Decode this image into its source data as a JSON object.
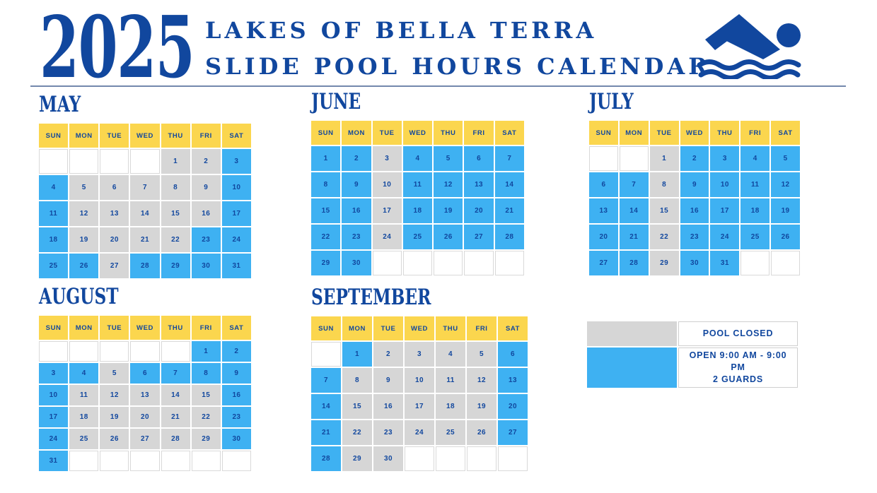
{
  "header": {
    "year": "2025",
    "title_line1": "LAKES OF BELLA TERRA",
    "title_line2": "SLIDE POOL HOURS CALENDAR",
    "icon": "swimmer-icon"
  },
  "colors": {
    "navy_text": "#11479E",
    "open_blue": "#3EB1F2",
    "closed_gray": "#D6D6D6",
    "header_yellow": "#FBD64E"
  },
  "weekdays": [
    "SUN",
    "MON",
    "TUE",
    "WED",
    "THU",
    "FRI",
    "SAT"
  ],
  "legend": {
    "closed_label": "POOL CLOSED",
    "open_label_line1": "OPEN 9:00 AM - 9:00 PM",
    "open_label_line2": "2 GUARDS"
  },
  "months": [
    {
      "name": "MAY",
      "rows": [
        [
          {
            "day": "",
            "status": "empty"
          },
          {
            "day": "",
            "status": "empty"
          },
          {
            "day": "",
            "status": "empty"
          },
          {
            "day": "",
            "status": "empty"
          },
          {
            "day": "1",
            "status": "closed"
          },
          {
            "day": "2",
            "status": "closed"
          },
          {
            "day": "3",
            "status": "open"
          }
        ],
        [
          {
            "day": "4",
            "status": "open"
          },
          {
            "day": "5",
            "status": "closed"
          },
          {
            "day": "6",
            "status": "closed"
          },
          {
            "day": "7",
            "status": "closed"
          },
          {
            "day": "8",
            "status": "closed"
          },
          {
            "day": "9",
            "status": "closed"
          },
          {
            "day": "10",
            "status": "open"
          }
        ],
        [
          {
            "day": "11",
            "status": "open"
          },
          {
            "day": "12",
            "status": "closed"
          },
          {
            "day": "13",
            "status": "closed"
          },
          {
            "day": "14",
            "status": "closed"
          },
          {
            "day": "15",
            "status": "closed"
          },
          {
            "day": "16",
            "status": "closed"
          },
          {
            "day": "17",
            "status": "open"
          }
        ],
        [
          {
            "day": "18",
            "status": "open"
          },
          {
            "day": "19",
            "status": "closed"
          },
          {
            "day": "20",
            "status": "closed"
          },
          {
            "day": "21",
            "status": "closed"
          },
          {
            "day": "22",
            "status": "closed"
          },
          {
            "day": "23",
            "status": "open"
          },
          {
            "day": "24",
            "status": "open"
          }
        ],
        [
          {
            "day": "25",
            "status": "open"
          },
          {
            "day": "26",
            "status": "open"
          },
          {
            "day": "27",
            "status": "closed"
          },
          {
            "day": "28",
            "status": "open"
          },
          {
            "day": "29",
            "status": "open"
          },
          {
            "day": "30",
            "status": "open"
          },
          {
            "day": "31",
            "status": "open"
          }
        ]
      ]
    },
    {
      "name": "JUNE",
      "rows": [
        [
          {
            "day": "1",
            "status": "open"
          },
          {
            "day": "2",
            "status": "open"
          },
          {
            "day": "3",
            "status": "closed"
          },
          {
            "day": "4",
            "status": "open"
          },
          {
            "day": "5",
            "status": "open"
          },
          {
            "day": "6",
            "status": "open"
          },
          {
            "day": "7",
            "status": "open"
          }
        ],
        [
          {
            "day": "8",
            "status": "open"
          },
          {
            "day": "9",
            "status": "open"
          },
          {
            "day": "10",
            "status": "closed"
          },
          {
            "day": "11",
            "status": "open"
          },
          {
            "day": "12",
            "status": "open"
          },
          {
            "day": "13",
            "status": "open"
          },
          {
            "day": "14",
            "status": "open"
          }
        ],
        [
          {
            "day": "15",
            "status": "open"
          },
          {
            "day": "16",
            "status": "open"
          },
          {
            "day": "17",
            "status": "closed"
          },
          {
            "day": "18",
            "status": "open"
          },
          {
            "day": "19",
            "status": "open"
          },
          {
            "day": "20",
            "status": "open"
          },
          {
            "day": "21",
            "status": "open"
          }
        ],
        [
          {
            "day": "22",
            "status": "open"
          },
          {
            "day": "23",
            "status": "open"
          },
          {
            "day": "24",
            "status": "closed"
          },
          {
            "day": "25",
            "status": "open"
          },
          {
            "day": "26",
            "status": "open"
          },
          {
            "day": "27",
            "status": "open"
          },
          {
            "day": "28",
            "status": "open"
          }
        ],
        [
          {
            "day": "29",
            "status": "open"
          },
          {
            "day": "30",
            "status": "open"
          },
          {
            "day": "",
            "status": "empty"
          },
          {
            "day": "",
            "status": "empty"
          },
          {
            "day": "",
            "status": "empty"
          },
          {
            "day": "",
            "status": "empty"
          },
          {
            "day": "",
            "status": "empty"
          }
        ]
      ]
    },
    {
      "name": "JULY",
      "rows": [
        [
          {
            "day": "",
            "status": "empty"
          },
          {
            "day": "",
            "status": "empty"
          },
          {
            "day": "1",
            "status": "closed"
          },
          {
            "day": "2",
            "status": "open"
          },
          {
            "day": "3",
            "status": "open"
          },
          {
            "day": "4",
            "status": "open"
          },
          {
            "day": "5",
            "status": "open"
          }
        ],
        [
          {
            "day": "6",
            "status": "open"
          },
          {
            "day": "7",
            "status": "open"
          },
          {
            "day": "8",
            "status": "closed"
          },
          {
            "day": "9",
            "status": "open"
          },
          {
            "day": "10",
            "status": "open"
          },
          {
            "day": "11",
            "status": "open"
          },
          {
            "day": "12",
            "status": "open"
          }
        ],
        [
          {
            "day": "13",
            "status": "open"
          },
          {
            "day": "14",
            "status": "open"
          },
          {
            "day": "15",
            "status": "closed"
          },
          {
            "day": "16",
            "status": "open"
          },
          {
            "day": "17",
            "status": "open"
          },
          {
            "day": "18",
            "status": "open"
          },
          {
            "day": "19",
            "status": "open"
          }
        ],
        [
          {
            "day": "20",
            "status": "open"
          },
          {
            "day": "21",
            "status": "open"
          },
          {
            "day": "22",
            "status": "closed"
          },
          {
            "day": "23",
            "status": "open"
          },
          {
            "day": "24",
            "status": "open"
          },
          {
            "day": "25",
            "status": "open"
          },
          {
            "day": "26",
            "status": "open"
          }
        ],
        [
          {
            "day": "27",
            "status": "open"
          },
          {
            "day": "28",
            "status": "open"
          },
          {
            "day": "29",
            "status": "closed"
          },
          {
            "day": "30",
            "status": "open"
          },
          {
            "day": "31",
            "status": "open"
          },
          {
            "day": "",
            "status": "empty"
          },
          {
            "day": "",
            "status": "empty"
          }
        ]
      ]
    },
    {
      "name": "AUGUST",
      "rows": [
        [
          {
            "day": "",
            "status": "empty"
          },
          {
            "day": "",
            "status": "empty"
          },
          {
            "day": "",
            "status": "empty"
          },
          {
            "day": "",
            "status": "empty"
          },
          {
            "day": "",
            "status": "empty"
          },
          {
            "day": "1",
            "status": "open"
          },
          {
            "day": "2",
            "status": "open"
          }
        ],
        [
          {
            "day": "3",
            "status": "open"
          },
          {
            "day": "4",
            "status": "open"
          },
          {
            "day": "5",
            "status": "closed"
          },
          {
            "day": "6",
            "status": "open"
          },
          {
            "day": "7",
            "status": "open"
          },
          {
            "day": "8",
            "status": "open"
          },
          {
            "day": "9",
            "status": "open"
          }
        ],
        [
          {
            "day": "10",
            "status": "open"
          },
          {
            "day": "11",
            "status": "closed"
          },
          {
            "day": "12",
            "status": "closed"
          },
          {
            "day": "13",
            "status": "closed"
          },
          {
            "day": "14",
            "status": "closed"
          },
          {
            "day": "15",
            "status": "closed"
          },
          {
            "day": "16",
            "status": "open"
          }
        ],
        [
          {
            "day": "17",
            "status": "open"
          },
          {
            "day": "18",
            "status": "closed"
          },
          {
            "day": "19",
            "status": "closed"
          },
          {
            "day": "20",
            "status": "closed"
          },
          {
            "day": "21",
            "status": "closed"
          },
          {
            "day": "22",
            "status": "closed"
          },
          {
            "day": "23",
            "status": "open"
          }
        ],
        [
          {
            "day": "24",
            "status": "open"
          },
          {
            "day": "25",
            "status": "closed"
          },
          {
            "day": "26",
            "status": "closed"
          },
          {
            "day": "27",
            "status": "closed"
          },
          {
            "day": "28",
            "status": "closed"
          },
          {
            "day": "29",
            "status": "closed"
          },
          {
            "day": "30",
            "status": "open"
          }
        ],
        [
          {
            "day": "31",
            "status": "open"
          },
          {
            "day": "",
            "status": "empty"
          },
          {
            "day": "",
            "status": "empty"
          },
          {
            "day": "",
            "status": "empty"
          },
          {
            "day": "",
            "status": "empty"
          },
          {
            "day": "",
            "status": "empty"
          },
          {
            "day": "",
            "status": "empty"
          }
        ]
      ]
    },
    {
      "name": "SEPTEMBER",
      "rows": [
        [
          {
            "day": "",
            "status": "empty"
          },
          {
            "day": "1",
            "status": "open"
          },
          {
            "day": "2",
            "status": "closed"
          },
          {
            "day": "3",
            "status": "closed"
          },
          {
            "day": "4",
            "status": "closed"
          },
          {
            "day": "5",
            "status": "closed"
          },
          {
            "day": "6",
            "status": "open"
          }
        ],
        [
          {
            "day": "7",
            "status": "open"
          },
          {
            "day": "8",
            "status": "closed"
          },
          {
            "day": "9",
            "status": "closed"
          },
          {
            "day": "10",
            "status": "closed"
          },
          {
            "day": "11",
            "status": "closed"
          },
          {
            "day": "12",
            "status": "closed"
          },
          {
            "day": "13",
            "status": "open"
          }
        ],
        [
          {
            "day": "14",
            "status": "open"
          },
          {
            "day": "15",
            "status": "closed"
          },
          {
            "day": "16",
            "status": "closed"
          },
          {
            "day": "17",
            "status": "closed"
          },
          {
            "day": "18",
            "status": "closed"
          },
          {
            "day": "19",
            "status": "closed"
          },
          {
            "day": "20",
            "status": "open"
          }
        ],
        [
          {
            "day": "21",
            "status": "open"
          },
          {
            "day": "22",
            "status": "closed"
          },
          {
            "day": "23",
            "status": "closed"
          },
          {
            "day": "24",
            "status": "closed"
          },
          {
            "day": "25",
            "status": "closed"
          },
          {
            "day": "26",
            "status": "closed"
          },
          {
            "day": "27",
            "status": "open"
          }
        ],
        [
          {
            "day": "28",
            "status": "open"
          },
          {
            "day": "29",
            "status": "closed"
          },
          {
            "day": "30",
            "status": "closed"
          },
          {
            "day": "",
            "status": "empty"
          },
          {
            "day": "",
            "status": "empty"
          },
          {
            "day": "",
            "status": "empty"
          },
          {
            "day": "",
            "status": "empty"
          }
        ]
      ]
    }
  ]
}
